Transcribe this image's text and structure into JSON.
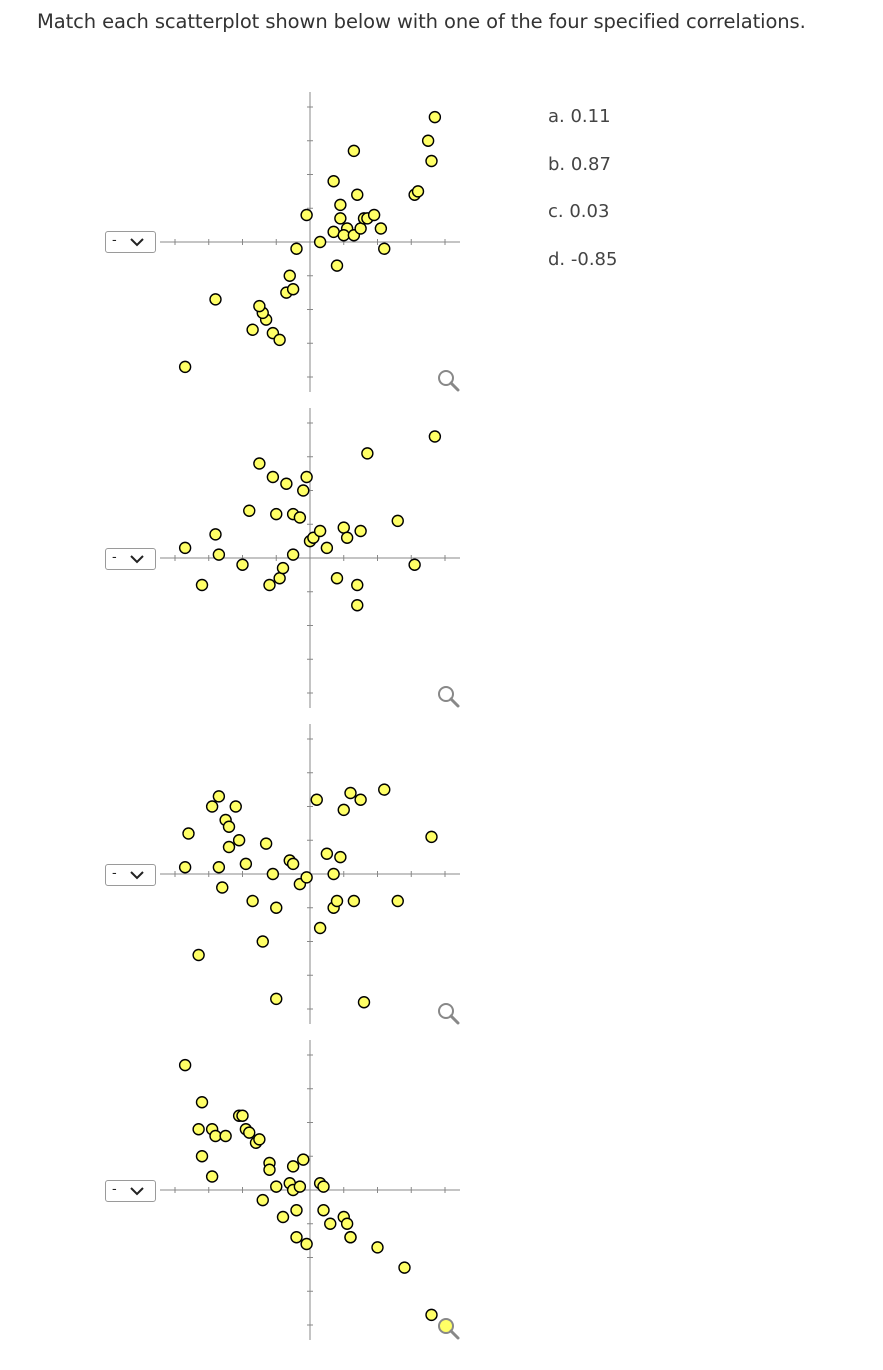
{
  "question": "Match each scatterplot shown below with one of the four specified correlations.",
  "options": [
    {
      "label": "a. 0.11"
    },
    {
      "label": "b. 0.87"
    },
    {
      "label": "c. 0.03"
    },
    {
      "label": "d. -0.85"
    }
  ],
  "colors": {
    "point_fill": "#ffff66",
    "point_stroke": "#000000",
    "axis": "#888888"
  },
  "icons": {
    "dropdown": "chevron-down-icon",
    "zoom": "magnifier-icon"
  },
  "plots": [
    {
      "select_value": "-",
      "chart_data": {
        "type": "scatter",
        "x_range": [
          -4,
          4
        ],
        "y_range": [
          -4,
          4
        ],
        "x": [
          -3.7,
          -2.8,
          -1.7,
          -1.3,
          -1.4,
          -1.5,
          -1.1,
          -0.9,
          -0.7,
          -0.5,
          -0.6,
          -0.4,
          -0.1,
          0.3,
          0.8,
          1.3,
          0.7,
          0.9,
          0.9,
          1.1,
          0.7,
          1.0,
          1.3,
          1.5,
          1.6,
          1.7,
          1.9,
          2.1,
          2.2,
          3.1,
          3.2,
          3.6,
          3.7,
          3.5,
          1.4
        ],
        "y": [
          -3.7,
          -1.7,
          -2.6,
          -2.3,
          -2.1,
          -1.9,
          -2.7,
          -2.9,
          -1.5,
          -1.4,
          -1.0,
          -0.2,
          0.8,
          0.0,
          -0.7,
          2.7,
          1.8,
          1.1,
          0.7,
          0.4,
          0.3,
          0.2,
          0.2,
          0.4,
          0.7,
          0.7,
          0.8,
          0.4,
          -0.2,
          1.4,
          1.5,
          2.4,
          3.7,
          3.0,
          1.4
        ]
      }
    },
    {
      "select_value": "-",
      "chart_data": {
        "type": "scatter",
        "x_range": [
          -4,
          4
        ],
        "y_range": [
          -4,
          4
        ],
        "x": [
          -3.7,
          -3.2,
          -2.8,
          -2.7,
          -2.0,
          -1.8,
          -1.5,
          -1.2,
          -1.1,
          -1.0,
          -0.9,
          -0.8,
          -0.7,
          -0.5,
          -0.5,
          -0.3,
          -0.2,
          -0.1,
          0.0,
          0.1,
          0.3,
          0.5,
          0.8,
          1.0,
          1.1,
          1.4,
          1.4,
          1.5,
          1.7,
          2.6,
          3.1,
          3.7
        ],
        "y": [
          0.3,
          -0.8,
          0.7,
          0.1,
          -0.2,
          1.4,
          2.8,
          -0.8,
          2.4,
          1.3,
          -0.6,
          -0.3,
          2.2,
          1.3,
          0.1,
          1.2,
          2.0,
          2.4,
          0.5,
          0.6,
          0.8,
          0.3,
          -0.6,
          0.9,
          0.6,
          -0.8,
          -1.4,
          0.8,
          3.1,
          1.1,
          -0.2,
          3.6
        ]
      }
    },
    {
      "select_value": "-",
      "chart_data": {
        "type": "scatter",
        "x_range": [
          -4,
          4
        ],
        "y_range": [
          -4,
          4
        ],
        "x": [
          -3.6,
          -3.7,
          -3.3,
          -2.9,
          -2.7,
          -2.5,
          -2.4,
          -2.6,
          -2.7,
          -2.4,
          -2.2,
          -2.1,
          -1.9,
          -1.7,
          -1.3,
          -1.4,
          -1.1,
          -1.0,
          -1.0,
          -0.6,
          -0.5,
          -0.3,
          -0.1,
          0.2,
          0.3,
          0.5,
          0.7,
          0.7,
          0.8,
          0.9,
          1.3,
          1.0,
          1.2,
          1.6,
          1.5,
          2.2,
          2.6,
          3.6
        ],
        "y": [
          1.2,
          0.2,
          -2.4,
          2.0,
          0.2,
          1.6,
          1.4,
          -0.4,
          2.3,
          0.8,
          2.0,
          1.0,
          0.3,
          -0.8,
          0.9,
          -2.0,
          0.0,
          -1.0,
          -3.7,
          0.4,
          0.3,
          -0.3,
          -0.1,
          2.2,
          -1.6,
          0.6,
          0.0,
          -1.0,
          -0.8,
          0.5,
          -0.8,
          1.9,
          2.4,
          -3.8,
          2.2,
          2.5,
          -0.8,
          1.1
        ]
      }
    },
    {
      "select_value": "-",
      "chart_data": {
        "type": "scatter",
        "x_range": [
          -4,
          4
        ],
        "y_range": [
          -4,
          4
        ],
        "x": [
          -3.7,
          -3.2,
          -3.3,
          -2.9,
          -2.8,
          -2.5,
          -3.2,
          -2.9,
          -2.1,
          -2.0,
          -1.9,
          -1.8,
          -1.6,
          -1.5,
          -1.4,
          -1.2,
          -1.2,
          -1.0,
          -0.8,
          -0.6,
          -0.5,
          -0.5,
          -0.4,
          -0.4,
          -0.3,
          -0.1,
          -0.2,
          0.3,
          0.4,
          0.4,
          1.0,
          0.6,
          1.1,
          1.2,
          1.2,
          2.0,
          2.8,
          3.6
        ],
        "y": [
          3.7,
          2.6,
          1.8,
          1.8,
          1.6,
          1.6,
          1.0,
          0.4,
          2.2,
          2.2,
          1.8,
          1.7,
          1.4,
          1.5,
          -0.3,
          0.8,
          0.6,
          0.1,
          -0.8,
          0.2,
          0.0,
          0.7,
          -0.6,
          -1.4,
          0.1,
          -1.6,
          0.9,
          0.2,
          0.1,
          -0.6,
          -0.8,
          -1.0,
          -1.0,
          -1.4,
          -1.4,
          -1.7,
          -2.3,
          -3.7
        ]
      }
    }
  ]
}
